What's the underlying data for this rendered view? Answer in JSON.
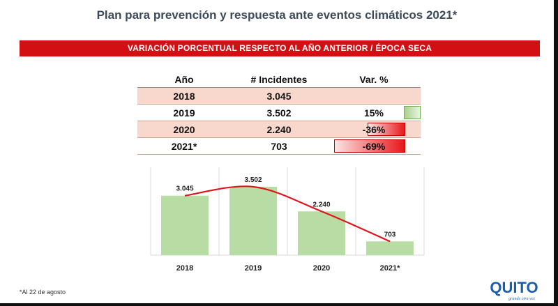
{
  "header": {
    "title": "Plan para prevención y respuesta ante eventos climáticos 2021*",
    "banner": "VARIACIÓN PORCENTUAL RESPECTO AL AÑO ANTERIOR / ÉPOCA SECA"
  },
  "table": {
    "columns": [
      "Año",
      "# Incidentes",
      "Var. %"
    ],
    "rows": [
      {
        "year": "2018",
        "incidents": "3.045",
        "var": "",
        "var_value": null
      },
      {
        "year": "2019",
        "incidents": "3.502",
        "var": "15%",
        "var_value": 15
      },
      {
        "year": "2020",
        "incidents": "2.240",
        "var": "-36%",
        "var_value": -36
      },
      {
        "year": "2021*",
        "incidents": "703",
        "var": "-69%",
        "var_value": -69
      }
    ],
    "colors": {
      "positive": "#a9d18e",
      "negative": "#e8161b",
      "row_shade": "#f8d7cd"
    }
  },
  "chart_data": {
    "type": "bar",
    "categories": [
      "2018",
      "2019",
      "2020",
      "2021*"
    ],
    "values": [
      3045,
      3502,
      2240,
      703
    ],
    "data_labels": [
      "3.045",
      "3.502",
      "2.240",
      "703"
    ],
    "overlay": "line",
    "ylim": [
      0,
      4000
    ],
    "grid": true,
    "colors": {
      "bar": "#b7dca4",
      "line": "#e0141a",
      "grid": "#d9d9d9"
    }
  },
  "footer": {
    "footnote": "*Al 22 de agosto",
    "logo_text": "QUITO",
    "logo_tagline": "grande otra vez",
    "logo_colors": {
      "blue": "#1b5eab",
      "red": "#e0141a"
    }
  }
}
